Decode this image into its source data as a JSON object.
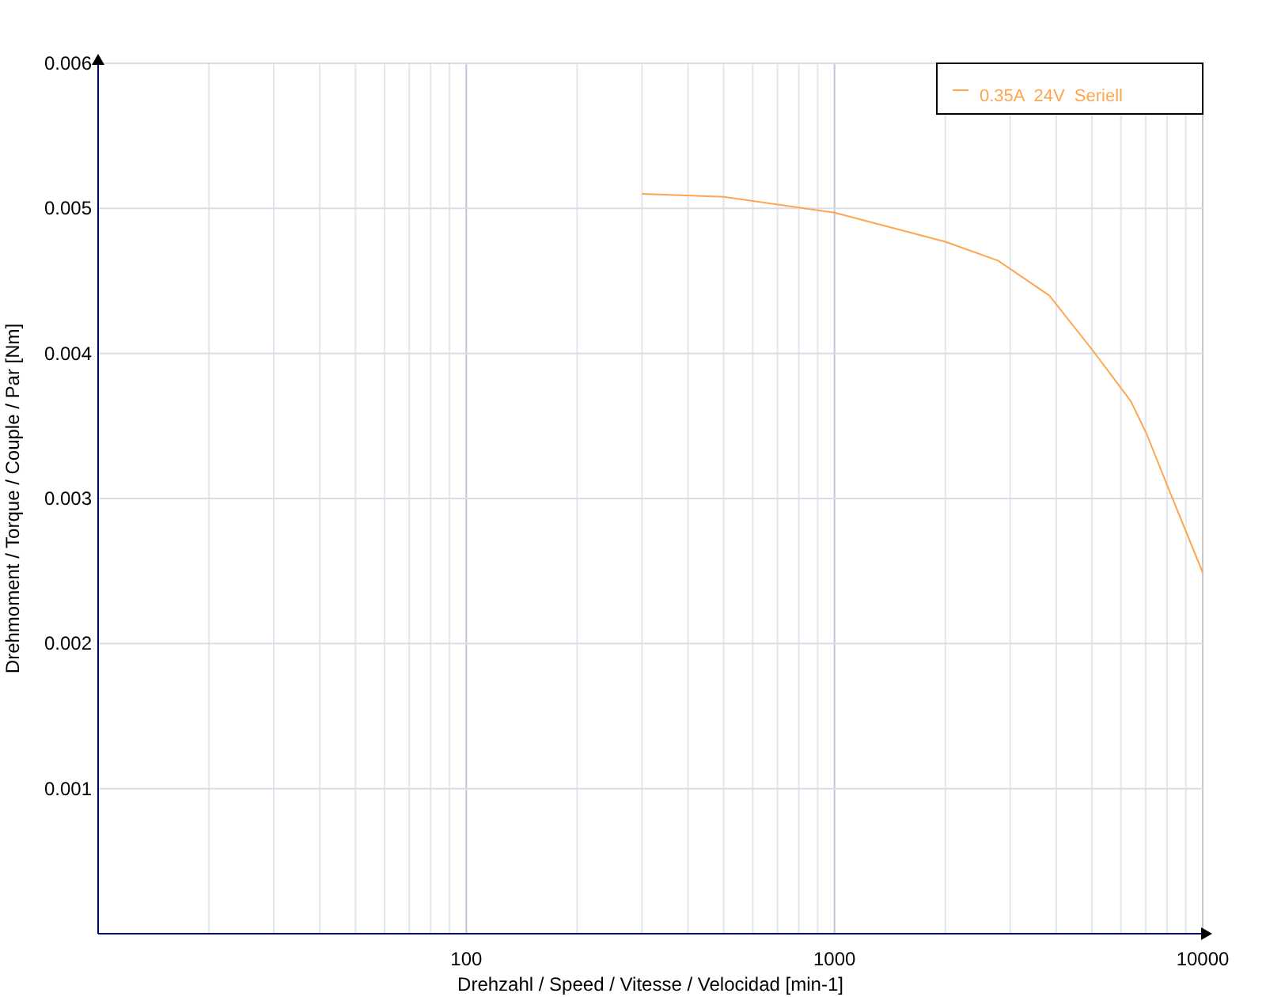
{
  "chart_data": {
    "type": "line",
    "xlabel": "Drehzahl / Speed / Vitesse / Velocidad [min-1]",
    "ylabel": "Drehmoment / Torque / Couple / Par [Nm]",
    "log": "x",
    "xlim": [
      10,
      10000
    ],
    "xticks": [
      100,
      1000,
      10000
    ],
    "ylim": [
      0,
      0.006
    ],
    "yticks": [
      0.001,
      0.002,
      0.003,
      0.004,
      0.005,
      0.006
    ],
    "grid": true,
    "legend": "top right",
    "series": [
      {
        "name": "0.35A  24V  Seriell",
        "color": "#ffa54f",
        "x": [
          300,
          500,
          1000,
          2000,
          2780,
          3830,
          5030,
          6380,
          7030,
          8130,
          10000
        ],
        "values": [
          0.0051,
          0.00508,
          0.00497,
          0.00477,
          0.00464,
          0.0044,
          0.00402,
          0.00367,
          0.00345,
          0.00305,
          0.00249
        ]
      }
    ]
  }
}
